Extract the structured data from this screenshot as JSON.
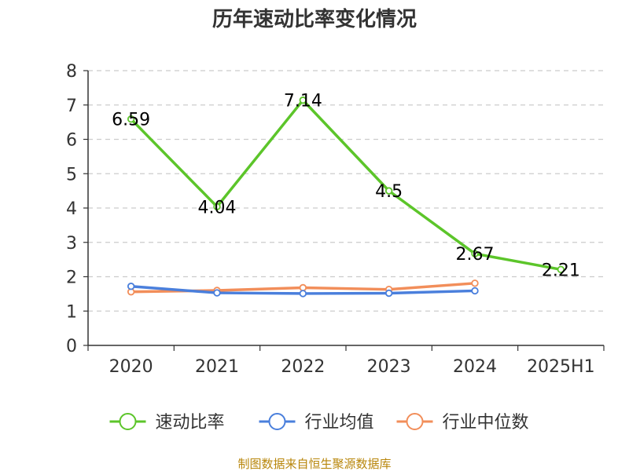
{
  "chart_data": {
    "type": "line",
    "title": "历年速动比率变化情况",
    "categories": [
      "2020",
      "2021",
      "2022",
      "2023",
      "2024",
      "2025H1"
    ],
    "y_ticks": [
      "0",
      "1",
      "2",
      "3",
      "4",
      "5",
      "6",
      "7",
      "8"
    ],
    "ylim": [
      0,
      8
    ],
    "grid": true,
    "legend_position": "bottom",
    "series": [
      {
        "name": "速动比率",
        "color": "#5cc52a",
        "values": [
          6.59,
          4.04,
          7.14,
          4.5,
          2.67,
          2.21
        ],
        "labels": [
          "6.59",
          "4.04",
          "7.14",
          "4.5",
          "2.67",
          "2.21"
        ]
      },
      {
        "name": "行业均值",
        "color": "#4a7fdc",
        "values": [
          1.72,
          1.53,
          1.51,
          1.52,
          1.59,
          null
        ]
      },
      {
        "name": "行业中位数",
        "color": "#f28e5a",
        "values": [
          1.56,
          1.6,
          1.68,
          1.63,
          1.81,
          null
        ]
      }
    ],
    "source": "制图数据来自恒生聚源数据库"
  }
}
